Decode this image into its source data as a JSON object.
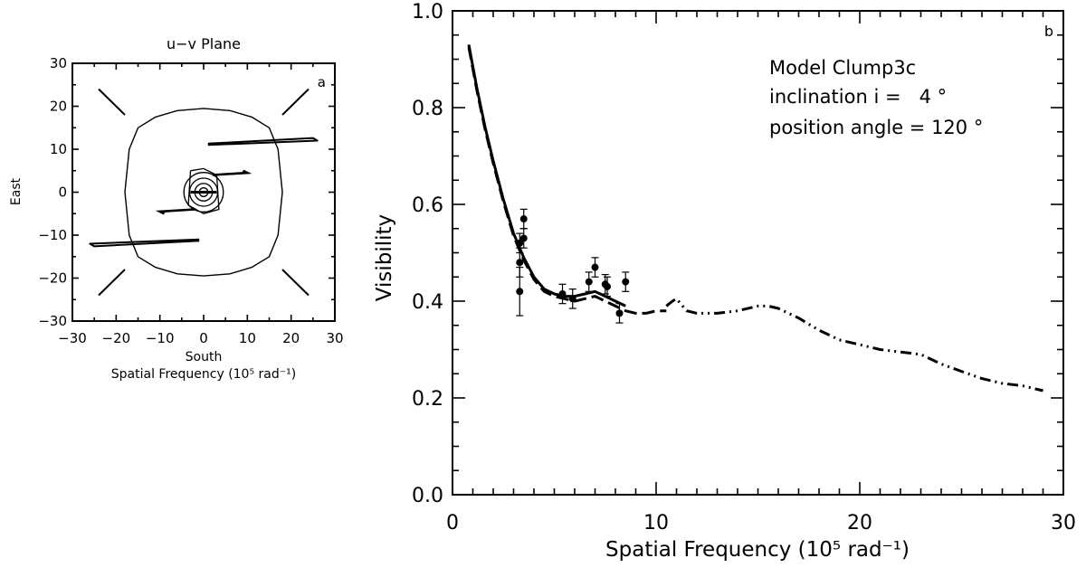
{
  "chart_data": [
    {
      "type": "scatter",
      "title": "u−v Plane",
      "panel_label": "a",
      "xlabel": "South",
      "xlabel2": "Spatial Frequency (10⁵ rad⁻¹)",
      "ylabel": "East",
      "xlim": [
        -30,
        30
      ],
      "ylim": [
        -30,
        30
      ],
      "xticks": [
        -30,
        -20,
        -10,
        0,
        10,
        20,
        30
      ],
      "yticks": [
        -30,
        -20,
        -10,
        0,
        10,
        20,
        30
      ],
      "xtick_labels": [
        "−30",
        "−20",
        "−10",
        "0",
        "10",
        "20",
        "30"
      ],
      "ytick_labels": [
        "−30",
        "−20",
        "−10",
        "0",
        "10",
        "20",
        "30"
      ],
      "grid": false,
      "series": [
        {
          "style": "solid",
          "x": [
            -15,
            -11,
            -6,
            0,
            6,
            11,
            15,
            17,
            18,
            17,
            15,
            11,
            6,
            0,
            -6,
            -11,
            -15,
            -17,
            -18,
            -17,
            -15
          ],
          "y": [
            15,
            17.5,
            19,
            19.5,
            19,
            17.5,
            15,
            10,
            0,
            -10,
            -15,
            -17.5,
            -19,
            -19.5,
            -19,
            -17.5,
            -15,
            -10,
            0,
            10,
            15
          ]
        },
        {
          "style": "solid",
          "x": [
            1,
            26,
            25,
            1
          ],
          "y": [
            11,
            12,
            12.6,
            11.3
          ]
        },
        {
          "style": "solid",
          "x": [
            -1,
            -26,
            -25,
            -1
          ],
          "y": [
            -11,
            -12,
            -12.6,
            -11.3
          ]
        },
        {
          "style": "solid",
          "x": [
            -18,
            -24
          ],
          "y": [
            18,
            24
          ]
        },
        {
          "style": "solid",
          "x": [
            18,
            24
          ],
          "y": [
            18,
            24
          ]
        },
        {
          "style": "solid",
          "x": [
            -18,
            -24
          ],
          "y": [
            -18,
            -24
          ]
        },
        {
          "style": "solid",
          "x": [
            18,
            24
          ],
          "y": [
            -18,
            -24
          ]
        }
      ]
    },
    {
      "type": "line",
      "panel_label": "b",
      "xlabel": "Spatial Frequency (10⁵ rad⁻¹)",
      "ylabel": "Visibility",
      "xlim": [
        0,
        30
      ],
      "ylim": [
        0,
        1
      ],
      "xticks": [
        0,
        10,
        20,
        30
      ],
      "xtick_labels": [
        "0",
        "10",
        "20",
        "30"
      ],
      "yticks": [
        0,
        0.2,
        0.4,
        0.6,
        0.8,
        1.0
      ],
      "ytick_labels": [
        "0.0",
        "0.2",
        "0.4",
        "0.6",
        "0.8",
        "1.0"
      ],
      "grid": false,
      "annotations": [
        "Model Clump3c",
        "inclination i =   4 °",
        "position angle = 120 °"
      ],
      "series": [
        {
          "style": "solid",
          "x": [
            0.8,
            1.2,
            1.6,
            2.0,
            2.5,
            3.0,
            3.5,
            4.0,
            4.5,
            5.0,
            5.5,
            6.0,
            6.5,
            7.0,
            7.5,
            8.0,
            8.5
          ],
          "y": [
            0.93,
            0.84,
            0.76,
            0.69,
            0.61,
            0.54,
            0.49,
            0.45,
            0.425,
            0.415,
            0.41,
            0.41,
            0.415,
            0.42,
            0.41,
            0.4,
            0.39
          ]
        },
        {
          "style": "dashed",
          "x": [
            0.8,
            1.2,
            1.6,
            2.0,
            2.5,
            3.0,
            3.5,
            4.0,
            4.5,
            5.0,
            5.5,
            6.0,
            6.5,
            7.0,
            7.5,
            8.0,
            8.5,
            9.0,
            9.5,
            10.0,
            10.5
          ],
          "y": [
            0.925,
            0.835,
            0.755,
            0.685,
            0.605,
            0.535,
            0.485,
            0.445,
            0.42,
            0.41,
            0.405,
            0.4,
            0.405,
            0.41,
            0.4,
            0.39,
            0.38,
            0.375,
            0.375,
            0.38,
            0.38
          ]
        },
        {
          "style": "dashdotdot",
          "x": [
            10.5,
            10.8,
            11.0,
            11.3,
            11.5,
            12.0,
            13.0,
            14.0,
            15.0,
            15.5,
            16.0,
            17.0,
            18.0,
            19.0,
            20.0,
            21.0,
            22.0,
            23.0,
            24.0,
            25.0,
            26.0,
            27.0,
            28.0,
            29.0
          ],
          "y": [
            0.39,
            0.4,
            0.405,
            0.39,
            0.38,
            0.375,
            0.375,
            0.38,
            0.39,
            0.39,
            0.385,
            0.365,
            0.34,
            0.32,
            0.31,
            0.3,
            0.295,
            0.29,
            0.27,
            0.255,
            0.24,
            0.23,
            0.225,
            0.215
          ]
        },
        {
          "style": "points",
          "x": [
            3.3,
            3.3,
            3.3,
            3.5,
            3.5,
            5.4,
            5.9,
            6.7,
            7.0,
            7.5,
            7.6,
            8.2,
            8.5
          ],
          "y": [
            0.42,
            0.48,
            0.52,
            0.57,
            0.53,
            0.415,
            0.405,
            0.44,
            0.47,
            0.435,
            0.43,
            0.375,
            0.44
          ],
          "err": [
            0.05,
            0.03,
            0.02,
            0.02,
            0.02,
            0.02,
            0.02,
            0.02,
            0.02,
            0.02,
            0.02,
            0.02,
            0.02
          ]
        }
      ]
    }
  ]
}
